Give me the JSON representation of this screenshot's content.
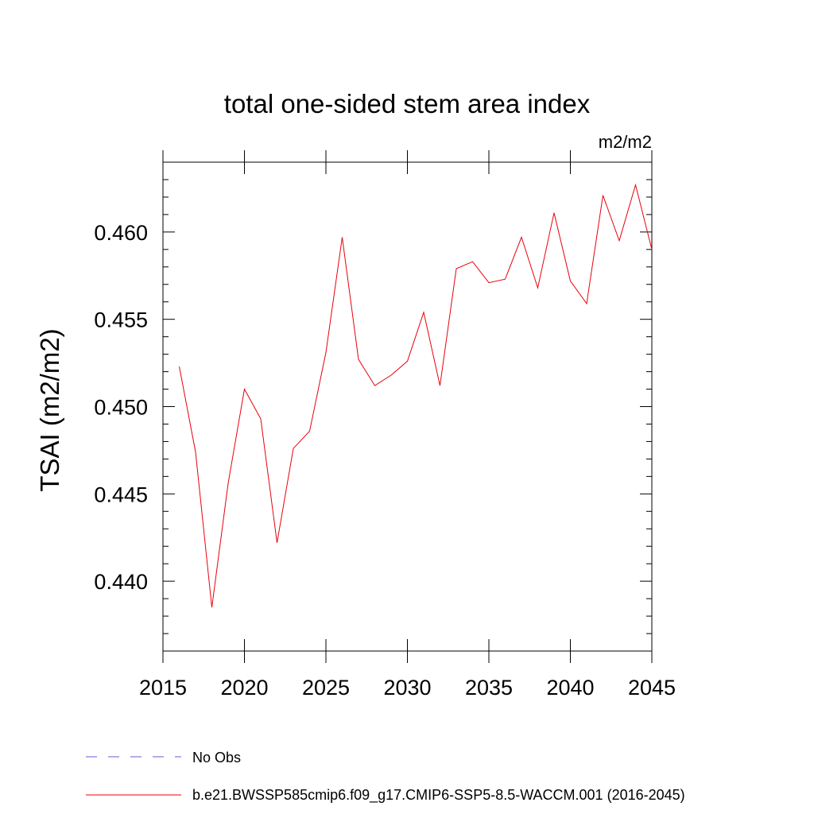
{
  "chart_data": {
    "type": "line",
    "title": "total one-sided stem area index",
    "units_label": "m2/m2",
    "xlabel": "",
    "ylabel": "TSAI  (m2/m2)",
    "xlim": [
      2015,
      2045
    ],
    "ylim": [
      0.436,
      0.464
    ],
    "x_ticks": [
      2015,
      2020,
      2025,
      2030,
      2035,
      2040,
      2045
    ],
    "y_ticks": [
      0.44,
      0.445,
      0.45,
      0.455,
      0.46
    ],
    "x_tick_labels": [
      "2015",
      "2020",
      "2025",
      "2030",
      "2035",
      "2040",
      "2045"
    ],
    "y_tick_labels": [
      "0.440",
      "0.445",
      "0.450",
      "0.455",
      "0.460"
    ],
    "grid": false,
    "legend_position": "bottom",
    "series": [
      {
        "name": "b.e21.BWSSP585cmip6.f09_g17.CMIP6-SSP5-8.5-WACCM.001 (2016-2045)",
        "color": "#e8000b",
        "x": [
          2016,
          2017,
          2018,
          2019,
          2020,
          2021,
          2022,
          2023,
          2024,
          2025,
          2026,
          2027,
          2028,
          2029,
          2030,
          2031,
          2032,
          2033,
          2034,
          2035,
          2036,
          2037,
          2038,
          2039,
          2040,
          2041,
          2042,
          2043,
          2044,
          2045
        ],
        "values": [
          0.4523,
          0.4474,
          0.4385,
          0.4456,
          0.451,
          0.4493,
          0.4422,
          0.4476,
          0.4486,
          0.4531,
          0.4597,
          0.4527,
          0.4512,
          0.4518,
          0.4526,
          0.4554,
          0.4512,
          0.4579,
          0.4583,
          0.4571,
          0.4573,
          0.4597,
          0.4568,
          0.4611,
          0.4572,
          0.4559,
          0.4621,
          0.4595,
          0.4627,
          0.459
        ]
      }
    ],
    "legend": [
      {
        "label": "No Obs",
        "color": "#6a5acd",
        "style": "dashed"
      },
      {
        "label": "b.e21.BWSSP585cmip6.f09_g17.CMIP6-SSP5-8.5-WACCM.001 (2016-2045)",
        "color": "#e8000b",
        "style": "solid"
      }
    ]
  }
}
